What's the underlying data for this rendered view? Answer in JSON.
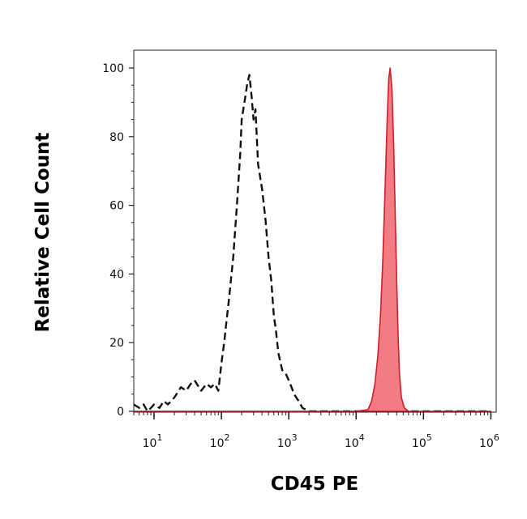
{
  "chart_data": {
    "type": "area",
    "title": "",
    "xlabel": "CD45 PE",
    "ylabel": "Relative Cell Count",
    "x_scale": "log",
    "xlim": [
      5,
      1200000
    ],
    "ylim": [
      0,
      100
    ],
    "y_ticks": [
      {
        "value": 0,
        "label": "0"
      },
      {
        "value": 20,
        "label": "20"
      },
      {
        "value": 40,
        "label": "40"
      },
      {
        "value": 60,
        "label": "60"
      },
      {
        "value": 80,
        "label": "80"
      },
      {
        "value": 100,
        "label": "100"
      }
    ],
    "x_ticks": [
      {
        "value": 10,
        "base": "10",
        "exp": "1"
      },
      {
        "value": 100,
        "base": "10",
        "exp": "2"
      },
      {
        "value": 1000,
        "base": "10",
        "exp": "3"
      },
      {
        "value": 10000,
        "base": "10",
        "exp": "4"
      },
      {
        "value": 100000,
        "base": "10",
        "exp": "5"
      },
      {
        "value": 1000000,
        "base": "10",
        "exp": "6"
      }
    ],
    "grid": false,
    "legend": "none",
    "series": [
      {
        "style": "dashed",
        "color": "#111111",
        "x": [
          5,
          6,
          7,
          8,
          9,
          10,
          12,
          14,
          16,
          18,
          20,
          25,
          30,
          35,
          40,
          50,
          60,
          70,
          80,
          90,
          100,
          110,
          120,
          130,
          150,
          170,
          190,
          200,
          220,
          240,
          260,
          280,
          300,
          320,
          350,
          400,
          450,
          500,
          550,
          600,
          650,
          700,
          800,
          900,
          1000,
          1100,
          1200,
          1400,
          1600,
          2000,
          3000,
          5000,
          10000,
          30000,
          100000,
          1000000
        ],
        "y": [
          2,
          1,
          2,
          0,
          1,
          2,
          1,
          3,
          2,
          3,
          4,
          7,
          6,
          8,
          9,
          6,
          8,
          7,
          8,
          6,
          14,
          20,
          27,
          33,
          45,
          60,
          75,
          85,
          90,
          95,
          98,
          92,
          85,
          88,
          72,
          65,
          56,
          45,
          38,
          28,
          23,
          17,
          12,
          11,
          9,
          7,
          5,
          3,
          1,
          0,
          0,
          0,
          0,
          0,
          0,
          0
        ]
      },
      {
        "style": "filled",
        "color": "#cc1f2c",
        "fill": "#f27b84",
        "x": [
          5,
          10000,
          15000,
          17000,
          19000,
          21000,
          23000,
          25000,
          27000,
          29000,
          30500,
          32000,
          34000,
          36000,
          38000,
          40000,
          42000,
          44000,
          47000,
          52000,
          60000,
          1000000
        ],
        "y": [
          0,
          0,
          0.5,
          3,
          8,
          16,
          28,
          45,
          66,
          86,
          97,
          100,
          94,
          78,
          58,
          38,
          22,
          11,
          4,
          1,
          0,
          0
        ]
      }
    ]
  }
}
